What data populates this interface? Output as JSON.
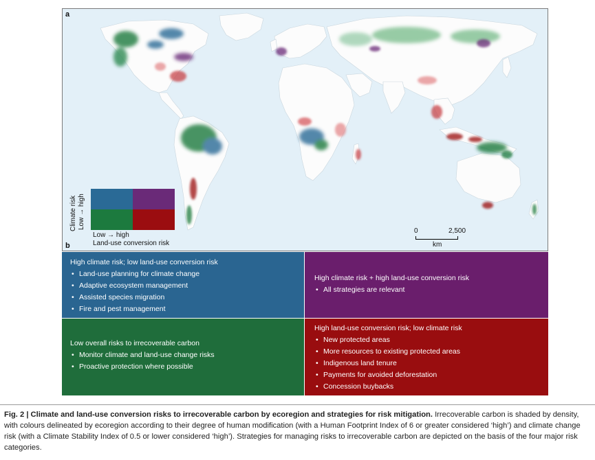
{
  "figure": {
    "panel_a_letter": "a",
    "panel_b_letter": "b"
  },
  "map": {
    "ocean_color": "#e3f0f8",
    "land_color": "#fdfdfd",
    "risk_colors": {
      "high_climate_low_landuse": "#2a6a96",
      "high_climate_high_landuse": "#6a2a78",
      "low_climate_low_landuse": "#1c7a3e",
      "low_climate_high_landuse": "#9b0d10"
    }
  },
  "legend": {
    "y_title": "Climate risk",
    "y_axis": "Low → high",
    "x_axis": "Low → high",
    "x_title": "Land-use conversion risk"
  },
  "scalebar": {
    "start": "0",
    "end": "2,500",
    "unit": "km"
  },
  "strategies": {
    "top_left": {
      "title": "High climate risk; low land-use conversion risk",
      "items": [
        "Land-use planning for climate change",
        "Adaptive ecosystem management",
        "Assisted species migration",
        "Fire and pest management"
      ],
      "color": "#2a6591"
    },
    "top_right": {
      "title": "High climate risk + high land-use conversion risk",
      "items": [
        "All strategies are relevant"
      ],
      "color": "#6a1e6c"
    },
    "bottom_left": {
      "title": "Low overall risks to irrecoverable carbon",
      "items": [
        "Monitor climate and land-use change risks",
        "Proactive protection where possible"
      ],
      "color": "#1f6d3b"
    },
    "bottom_right": {
      "title": "High land-use conversion risk; low climate risk",
      "items": [
        "New protected areas",
        "More resources to existing protected areas",
        "Indigenous land tenure",
        "Payments for avoided deforestation",
        "Concession buybacks"
      ],
      "color": "#990d0f"
    }
  },
  "caption": {
    "label": "Fig. 2 | Climate and land-use conversion risks to irrecoverable carbon by ecoregion and strategies for risk mitigation.",
    "text": " Irrecoverable carbon is shaded by density, with colours delineated by ecoregion according to their degree of human modification (with a Human Footprint Index of 6 or greater considered ‘high’) and climate change risk (with a Climate Stability Index of 0.5 or lower considered ‘high’). Strategies for managing risks to irrecoverable carbon are depicted on the basis of the four major risk categories."
  }
}
